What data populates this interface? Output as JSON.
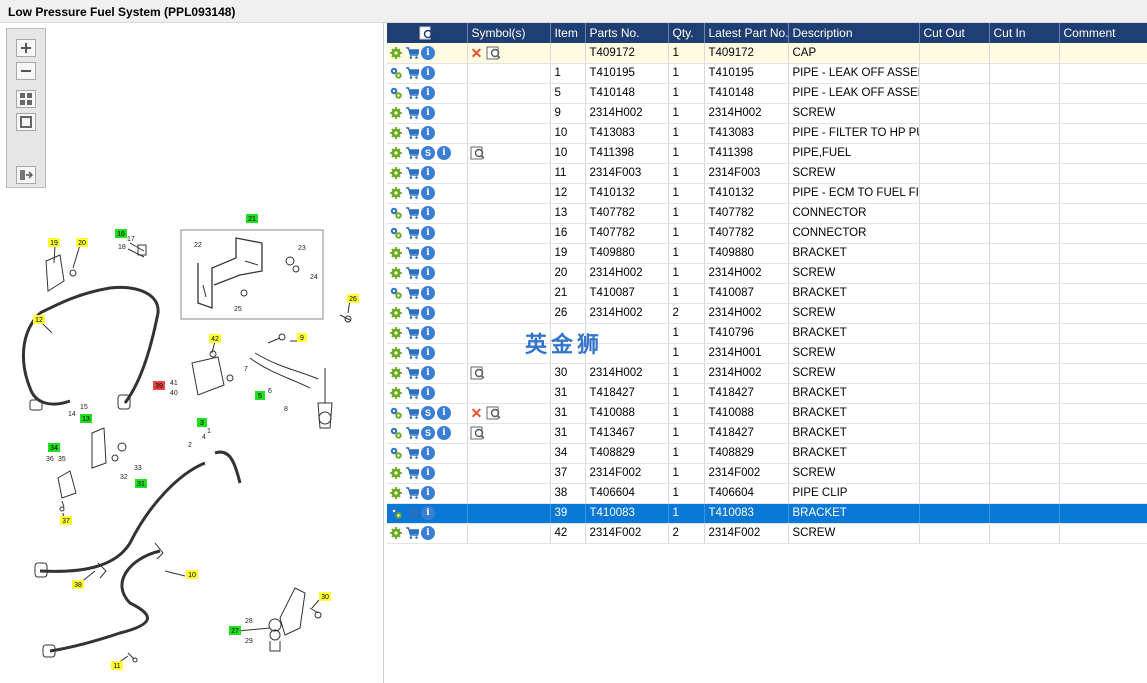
{
  "window": {
    "title": "Low Pressure Fuel System (PPL093148)"
  },
  "watermark": "英金狮",
  "table": {
    "headers": {
      "icons": "",
      "symbols": "Symbol(s)",
      "item": "Item",
      "parts_no": "Parts No.",
      "qty": "Qty.",
      "latest": "Latest Part No.",
      "description": "Description",
      "cut_out": "Cut Out",
      "cut_in": "Cut In",
      "comment": "Comment"
    },
    "rows": [
      {
        "item": "",
        "part": "T409172",
        "qty": "1",
        "latest": "T409172",
        "desc": "CAP",
        "multi": false,
        "s": false,
        "sym": "x-view"
      },
      {
        "item": "1",
        "part": "T410195",
        "qty": "1",
        "latest": "T410195",
        "desc": "PIPE - LEAK OFF ASSEMBLY",
        "multi": true,
        "s": false,
        "sym": ""
      },
      {
        "item": "5",
        "part": "T410148",
        "qty": "1",
        "latest": "T410148",
        "desc": "PIPE - LEAK OFF ASSEMBLY",
        "multi": true,
        "s": false,
        "sym": ""
      },
      {
        "item": "9",
        "part": "2314H002",
        "qty": "1",
        "latest": "2314H002",
        "desc": "SCREW",
        "multi": false,
        "s": false,
        "sym": ""
      },
      {
        "item": "10",
        "part": "T413083",
        "qty": "1",
        "latest": "T413083",
        "desc": "PIPE - FILTER TO HP PUMP",
        "multi": false,
        "s": false,
        "sym": ""
      },
      {
        "item": "10",
        "part": "T411398",
        "qty": "1",
        "latest": "T411398",
        "desc": "PIPE,FUEL",
        "multi": false,
        "s": true,
        "sym": "view"
      },
      {
        "item": "11",
        "part": "2314F003",
        "qty": "1",
        "latest": "2314F003",
        "desc": "SCREW",
        "multi": false,
        "s": false,
        "sym": ""
      },
      {
        "item": "12",
        "part": "T410132",
        "qty": "1",
        "latest": "T410132",
        "desc": "PIPE - ECM TO FUEL FILTER",
        "multi": false,
        "s": false,
        "sym": ""
      },
      {
        "item": "13",
        "part": "T407782",
        "qty": "1",
        "latest": "T407782",
        "desc": "CONNECTOR",
        "multi": true,
        "s": false,
        "sym": ""
      },
      {
        "item": "16",
        "part": "T407782",
        "qty": "1",
        "latest": "T407782",
        "desc": "CONNECTOR",
        "multi": true,
        "s": false,
        "sym": ""
      },
      {
        "item": "19",
        "part": "T409880",
        "qty": "1",
        "latest": "T409880",
        "desc": "BRACKET",
        "multi": false,
        "s": false,
        "sym": ""
      },
      {
        "item": "20",
        "part": "2314H002",
        "qty": "1",
        "latest": "2314H002",
        "desc": "SCREW",
        "multi": false,
        "s": false,
        "sym": ""
      },
      {
        "item": "21",
        "part": "T410087",
        "qty": "1",
        "latest": "T410087",
        "desc": "BRACKET",
        "multi": true,
        "s": false,
        "sym": ""
      },
      {
        "item": "26",
        "part": "2314H002",
        "qty": "2",
        "latest": "2314H002",
        "desc": "SCREW",
        "multi": false,
        "s": false,
        "sym": ""
      },
      {
        "item": "",
        "part": "",
        "qty": "1",
        "latest": "T410796",
        "desc": "BRACKET",
        "multi": false,
        "s": false,
        "sym": ""
      },
      {
        "item": "",
        "part": "",
        "qty": "1",
        "latest": "2314H001",
        "desc": "SCREW",
        "multi": false,
        "s": false,
        "sym": ""
      },
      {
        "item": "30",
        "part": "2314H002",
        "qty": "1",
        "latest": "2314H002",
        "desc": "SCREW",
        "multi": false,
        "s": false,
        "sym": "view"
      },
      {
        "item": "31",
        "part": "T418427",
        "qty": "1",
        "latest": "T418427",
        "desc": "BRACKET",
        "multi": false,
        "s": false,
        "sym": ""
      },
      {
        "item": "31",
        "part": "T410088",
        "qty": "1",
        "latest": "T410088",
        "desc": "BRACKET",
        "multi": true,
        "s": true,
        "sym": "x-view"
      },
      {
        "item": "31",
        "part": "T413467",
        "qty": "1",
        "latest": "T418427",
        "desc": "BRACKET",
        "multi": true,
        "s": true,
        "sym": "view"
      },
      {
        "item": "34",
        "part": "T408829",
        "qty": "1",
        "latest": "T408829",
        "desc": "BRACKET",
        "multi": true,
        "s": false,
        "sym": ""
      },
      {
        "item": "37",
        "part": "2314F002",
        "qty": "1",
        "latest": "2314F002",
        "desc": "SCREW",
        "multi": false,
        "s": false,
        "sym": ""
      },
      {
        "item": "38",
        "part": "T406604",
        "qty": "1",
        "latest": "T406604",
        "desc": "PIPE CLIP",
        "multi": false,
        "s": false,
        "sym": ""
      },
      {
        "item": "39",
        "part": "T410083",
        "qty": "1",
        "latest": "T410083",
        "desc": "BRACKET",
        "multi": true,
        "s": false,
        "sym": "",
        "selected": true
      },
      {
        "item": "42",
        "part": "2314F002",
        "qty": "2",
        "latest": "2314F002",
        "desc": "SCREW",
        "multi": false,
        "s": false,
        "sym": ""
      }
    ]
  },
  "diagram": {
    "callouts_yellow": [
      "19",
      "20",
      "12",
      "42",
      "9",
      "26",
      "38",
      "10",
      "11",
      "37",
      "30"
    ],
    "callouts_green": [
      "21",
      "16",
      "5",
      "13",
      "3",
      "34",
      "31",
      "27"
    ],
    "callouts_red": [
      "39"
    ],
    "labels": [
      "17",
      "18",
      "22",
      "23",
      "24",
      "25",
      "41",
      "40",
      "7",
      "6",
      "8",
      "14",
      "15",
      "2",
      "4",
      "1",
      "32",
      "33",
      "36",
      "35",
      "28",
      "29"
    ]
  },
  "colors": {
    "header_bg": "#1f3e73",
    "selected_row": "#0a78d6",
    "first_row": "#fffbe3",
    "callout_yellow": "#ffff33",
    "callout_green": "#22dd22",
    "callout_red": "#ee4444"
  }
}
